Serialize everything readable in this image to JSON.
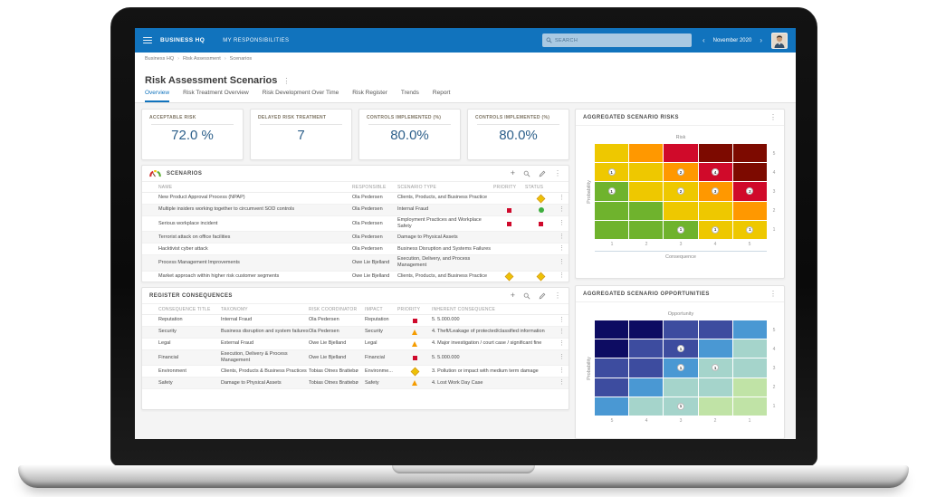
{
  "icons": {
    "kebab": "⋮",
    "plus": "+",
    "chevron_left": "‹",
    "chevron_right": "›",
    "breadcrumb_separator": "›"
  },
  "topbar": {
    "brand": "BUSINESS HQ",
    "nav_item": "MY RESPONSIBILITIES",
    "search_placeholder": "SEARCH",
    "period": "November 2020"
  },
  "breadcrumb": {
    "items": [
      "Business HQ",
      "Risk Assessment",
      "Scenarios"
    ]
  },
  "page": {
    "title": "Risk Assessment Scenarios"
  },
  "tabs": [
    {
      "label": "Overview",
      "active": true
    },
    {
      "label": "Risk Treatment Overview",
      "active": false
    },
    {
      "label": "Risk Development Over Time",
      "active": false
    },
    {
      "label": "Risk Register",
      "active": false
    },
    {
      "label": "Trends",
      "active": false
    },
    {
      "label": "Report",
      "active": false
    }
  ],
  "kpis": [
    {
      "label": "ACCEPTABLE RISK",
      "value": "72.0 %"
    },
    {
      "label": "DELAYED RISK TREATMENT",
      "value": "7"
    },
    {
      "label": "CONTROLS IMPLEMENTED (%)",
      "value": "80.0%"
    },
    {
      "label": "CONTROLS IMPLEMENTED (%)",
      "value": "80.0%"
    }
  ],
  "scenarios": {
    "title": "SCENARIOS",
    "columns": [
      "NAME",
      "RESPONSIBLE",
      "SCENARIO TYPE",
      "PRIORITY",
      "STATUS"
    ],
    "rows": [
      {
        "name": "New Product Approval Process (NPAP)",
        "responsible": "Ola Pedersen",
        "type": "Clients, Products, and Business Practice",
        "priority": null,
        "status": "yellow-diamond"
      },
      {
        "name": "Multiple insiders working together to circumvent SOD controls",
        "responsible": "Ola Pedersen",
        "type": "Internal Fraud",
        "priority": "red-square",
        "status": "green-circle"
      },
      {
        "name": "Serious workplace incident",
        "responsible": "Ola Pedersen",
        "type": "Employment Practices and Workplace Safety",
        "priority": "red-square",
        "status": "red-square"
      },
      {
        "name": "Terrorist attack on office facilities",
        "responsible": "Ola Pedersen",
        "type": "Damage to Physical Assets",
        "priority": null,
        "status": null
      },
      {
        "name": "Hacktivist cyber attack",
        "responsible": "Ola Pedersen",
        "type": "Business Disruption and Systems Failures",
        "priority": null,
        "status": null
      },
      {
        "name": "Process Management Improvements",
        "responsible": "Owe Lie Bjelland",
        "type": "Execution, Delivery, and Process Management",
        "priority": null,
        "status": null
      },
      {
        "name": "Market approach within higher risk customer segments",
        "responsible": "Owe Lie Bjelland",
        "type": "Clients, Products, and Business Practice",
        "priority": "yellow-diamond",
        "status": "yellow-diamond"
      }
    ]
  },
  "consequences": {
    "title": "REGISTER CONSEQUENCES",
    "columns": [
      "CONSEQUENCE TITLE",
      "TAXONOMY",
      "RISK COORDINATOR",
      "IMPACT",
      "PRIORITY",
      "INHERENT CONSEQUENCE"
    ],
    "rows": [
      {
        "title": "Reputation",
        "taxonomy": "Internal Fraud",
        "coordinator": "Ola Pedersen",
        "impact": "Reputation",
        "priority": "red-square",
        "inherent": "5. 5.000.000"
      },
      {
        "title": "Security",
        "taxonomy": "Business disruption and system failures",
        "coordinator": "Ola Pedersen",
        "impact": "Security",
        "priority": "orange-triangle",
        "inherent": "4. Theft/Leakage of protected/classified information"
      },
      {
        "title": "Legal",
        "taxonomy": "External Fraud",
        "coordinator": "Owe Lie Bjelland",
        "impact": "Legal",
        "priority": "orange-triangle",
        "inherent": "4. Major investigation / court case / significant fine"
      },
      {
        "title": "Financial",
        "taxonomy": "Execution, Delivery & Process Management",
        "coordinator": "Owe Lie Bjelland",
        "impact": "Financial",
        "priority": "red-square",
        "inherent": "5. 5.000.000"
      },
      {
        "title": "Environment",
        "taxonomy": "Clients, Products & Business Practices",
        "coordinator": "Tobias Otnes Brattebø",
        "impact": "Environme...",
        "priority": "yellow-diamond",
        "inherent": "3. Pollution or impact with medium term damage"
      },
      {
        "title": "Safety",
        "taxonomy": "Damage to Physical Assets",
        "coordinator": "Tobias Otnes Brattebø",
        "impact": "Safety",
        "priority": "orange-triangle",
        "inherent": "4. Lost Work Day Case"
      }
    ]
  },
  "chart_data": [
    {
      "type": "heatmap",
      "title": "AGGREGATED SCENARIO RISKS",
      "chart_title": "Risk",
      "xlabel": "Consequence",
      "ylabel": "Probability",
      "x_ticks": [
        "1",
        "2",
        "3",
        "4",
        "5"
      ],
      "y_ticks": [
        "5",
        "4",
        "3",
        "2",
        "1"
      ],
      "cell_colors": [
        [
          "gold",
          "orange",
          "red",
          "darkred",
          "darkred"
        ],
        [
          "gold",
          "gold",
          "orange",
          "red",
          "darkred"
        ],
        [
          "green",
          "gold",
          "gold",
          "orange",
          "red"
        ],
        [
          "green",
          "green",
          "gold",
          "gold",
          "orange"
        ],
        [
          "green",
          "green",
          "green",
          "gold",
          "gold"
        ]
      ],
      "badges": [
        {
          "row": 1,
          "col": 0,
          "value": 1
        },
        {
          "row": 1,
          "col": 2,
          "value": 2
        },
        {
          "row": 1,
          "col": 3,
          "value": 4
        },
        {
          "row": 2,
          "col": 0,
          "value": 1
        },
        {
          "row": 2,
          "col": 2,
          "value": 2
        },
        {
          "row": 2,
          "col": 3,
          "value": 3
        },
        {
          "row": 2,
          "col": 4,
          "value": 2
        },
        {
          "row": 4,
          "col": 2,
          "value": 1
        },
        {
          "row": 4,
          "col": 3,
          "value": 1
        },
        {
          "row": 4,
          "col": 4,
          "value": 1
        }
      ],
      "palette": {
        "green": "#6fb32d",
        "gold": "#eec800",
        "orange": "#ff9800",
        "red": "#d00a2a",
        "darkred": "#7d0a00"
      }
    },
    {
      "type": "heatmap",
      "title": "AGGREGATED SCENARIO OPPORTUNITIES",
      "chart_title": "Opportunity",
      "xlabel": "",
      "ylabel": "Probability",
      "x_ticks": [
        "5",
        "4",
        "3",
        "2",
        "1"
      ],
      "y_ticks": [
        "5",
        "4",
        "3",
        "2",
        "1"
      ],
      "cell_colors": [
        [
          "navy",
          "navy",
          "indigo",
          "indigo",
          "steel"
        ],
        [
          "navy",
          "indigo",
          "indigo",
          "steel",
          "teal"
        ],
        [
          "indigo",
          "indigo",
          "steel",
          "teal",
          "teal"
        ],
        [
          "indigo",
          "steel",
          "teal",
          "teal",
          "lightgreen"
        ],
        [
          "steel",
          "teal",
          "teal",
          "lightgreen",
          "lightgreen"
        ]
      ],
      "badges": [
        {
          "row": 1,
          "col": 2,
          "value": 1
        },
        {
          "row": 2,
          "col": 2,
          "value": 1
        },
        {
          "row": 2,
          "col": 3,
          "value": 1
        },
        {
          "row": 4,
          "col": 2,
          "value": 1
        }
      ],
      "palette": {
        "navy": "#0d0c62",
        "indigo": "#3d4c9f",
        "steel": "#4a98d3",
        "teal": "#a5d4cb",
        "lightgreen": "#c0e3a6"
      }
    }
  ]
}
